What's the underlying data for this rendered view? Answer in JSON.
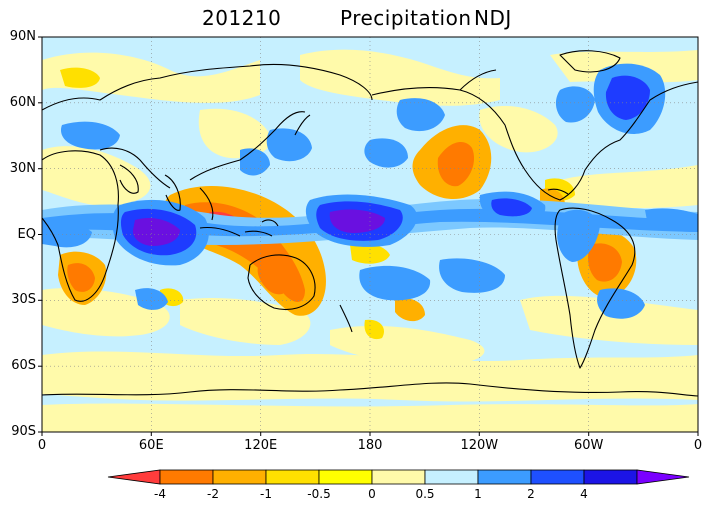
{
  "title": {
    "date": "201210",
    "variable": "Precipitation",
    "period": "NDJ"
  },
  "map": {
    "projection": "equirectangular",
    "lon_range": [
      0,
      360
    ],
    "lat_range": [
      -90,
      90
    ],
    "gridlines": "dotted"
  },
  "axes": {
    "lat_ticks": [
      "90N",
      "60N",
      "30N",
      "EQ",
      "30S",
      "60S",
      "90S"
    ],
    "lon_ticks": [
      "0",
      "60E",
      "120E",
      "180",
      "120W",
      "60W",
      "0"
    ]
  },
  "colorbar": {
    "levels": [
      "-4",
      "-2",
      "-1",
      "-0.5",
      "0",
      "0.5",
      "1",
      "2",
      "4"
    ],
    "colors": [
      "#ff3c3c",
      "#ff7a00",
      "#ffb000",
      "#ffe000",
      "#ffff00",
      "#fffaaa",
      "#c6f0ff",
      "#3c9cff",
      "#1e50ff",
      "#1c14e6",
      "#7a00ff"
    ]
  },
  "legend_colors": {
    "strong_negative": "#ff5a00",
    "negative": "#ff9a00",
    "weak_negative": "#ffd34a",
    "near_zero_negative": "#fffaaa",
    "near_zero_positive": "#c6f0ff",
    "weak_positive": "#7cc8ff",
    "positive": "#3c9cff",
    "strong_positive": "#1e3cff",
    "extreme_positive": "#6a10e0"
  }
}
